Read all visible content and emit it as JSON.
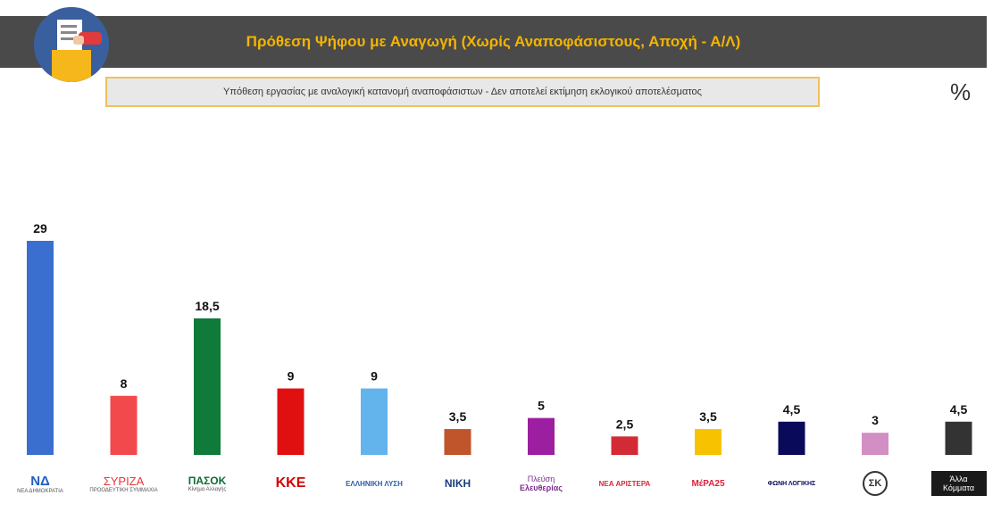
{
  "header": {
    "title": "Πρόθεση Ψήφου με Αναγωγή (Χωρίς Αναποφάσιστους, Αποχή - Α/Λ)",
    "subtitle": "Υπόθεση εργασίας με αναλογική κατανομή αναποφάσιστων - Δεν αποτελεί εκτίμηση εκλογικού αποτελέσματος",
    "percent_symbol": "%"
  },
  "logos": [
    {
      "text": "ΝΔ",
      "sub": "ΝΕΑ ΔΗΜΟΚΡΑΤΙΑ"
    },
    {
      "text": "ΣΥΡΙΖΑ",
      "sub": "ΠΡΟΟΔΕΥΤΙΚΗ ΣΥΜΜΑΧΙΑ"
    },
    {
      "text": "ΠΑΣΟΚ",
      "sub": "Κίνημα Αλλαγής"
    },
    {
      "text": "ΚΚΕ",
      "sub": ""
    },
    {
      "text": "ΕΛΛΗΝΙΚΗ ΛΥΣΗ",
      "sub": ""
    },
    {
      "text": "ΝΙΚΗ",
      "sub": ""
    },
    {
      "text": "Πλεύση",
      "sub": "Ελευθερίας"
    },
    {
      "text": "ΝΕΑ ΑΡΙΣΤΕΡΑ",
      "sub": ""
    },
    {
      "text": "ΜέΡΑ25",
      "sub": ""
    },
    {
      "text": "ΦΩΝΗ ΛΟΓΙΚΗΣ",
      "sub": ""
    },
    {
      "text": "ΣΚ",
      "sub": ""
    },
    {
      "text": "Άλλα Κόμματα",
      "sub": ""
    }
  ],
  "chart_data": {
    "type": "bar",
    "title": "Πρόθεση Ψήφου με Αναγωγή (Χωρίς Αναποφάσιστους, Αποχή - Α/Λ)",
    "subtitle": "Υπόθεση εργασίας με αναλογική κατανομή αναποφάσιστων - Δεν αποτελεί εκτίμηση εκλογικού αποτελέσματος",
    "categories": [
      "ΝΔ",
      "ΣΥΡΙΖΑ",
      "ΠΑΣΟΚ",
      "ΚΚΕ",
      "ΕΛΛΗΝΙΚΗ ΛΥΣΗ",
      "ΝΙΚΗ",
      "Πλεύση Ελευθερίας",
      "ΝΕΑ ΑΡΙΣΤΕΡΑ",
      "ΜέΡΑ25",
      "ΦΩΝΗ ΛΟΓΙΚΗΣ",
      "ΣΚ",
      "Άλλα Κόμματα"
    ],
    "values": [
      29,
      8,
      18.5,
      9,
      9,
      3.5,
      5,
      2.5,
      3.5,
      4.5,
      3,
      4.5
    ],
    "value_labels": [
      "29",
      "8",
      "18,5",
      "9",
      "9",
      "3,5",
      "5",
      "2,5",
      "3,5",
      "4,5",
      "3",
      "4,5"
    ],
    "colors": [
      "#3a6fcf",
      "#f2494d",
      "#0f7a3a",
      "#e01010",
      "#63b3ec",
      "#c0542a",
      "#9b1fa0",
      "#d32b35",
      "#f7c300",
      "#0a0a5a",
      "#d28fc3",
      "#333333"
    ],
    "ylim": [
      0,
      29
    ],
    "grid": false,
    "legend": "none"
  }
}
